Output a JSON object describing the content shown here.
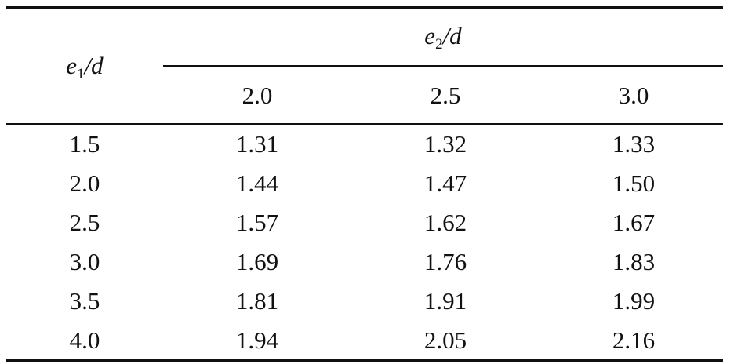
{
  "table": {
    "row_header": {
      "var": "e",
      "sub": "1",
      "rest": "/d"
    },
    "col_group_header": {
      "var": "e",
      "sub": "2",
      "rest": "/d"
    },
    "columns": [
      "2.0",
      "2.5",
      "3.0"
    ],
    "rows": [
      [
        "1.5",
        "1.31",
        "1.32",
        "1.33"
      ],
      [
        "2.0",
        "1.44",
        "1.47",
        "1.50"
      ],
      [
        "2.5",
        "1.57",
        "1.62",
        "1.67"
      ],
      [
        "3.0",
        "1.69",
        "1.76",
        "1.83"
      ],
      [
        "3.5",
        "1.81",
        "1.91",
        "1.99"
      ],
      [
        "4.0",
        "1.94",
        "2.05",
        "2.16"
      ]
    ]
  }
}
